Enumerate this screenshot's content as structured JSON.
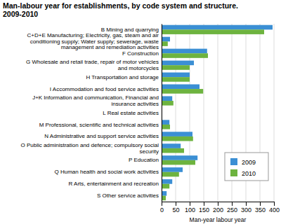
{
  "chart_data": {
    "type": "bar",
    "orientation": "horizontal",
    "title": "Man-labour year for establishments, by code system and structure. 2009-2010",
    "x_label": "Man-year labour year",
    "categories": [
      "B Mining and quarrying",
      "C+D+E Manufacturing; Electricity, gas, steam and air conditioning supply; Water supply; sewerage, waste management and remediation activities",
      "F Construction",
      "G Wholesale and retail trade, repair of motor vehicles and motorcycles",
      "H Transportation and storage",
      "I Accommodation and food service activities",
      "J+K Information and communication, Financial and insurance activities",
      "L Real estate activities",
      "M Professional, scientific and technical activities",
      "N Administrative and support service activities",
      "O Public administration and defence; compulsory social security",
      "P Education",
      "Q Human health and social work activities",
      "R Arts, entertainment and recreation",
      "S Other service activities"
    ],
    "series": [
      {
        "name": "2009",
        "color": "#3b8fd4",
        "values": [
          395,
          30,
          162,
          115,
          100,
          135,
          38,
          2,
          28,
          110,
          68,
          128,
          75,
          38,
          18
        ]
      },
      {
        "name": "2010",
        "color": "#6db33f",
        "values": [
          365,
          22,
          165,
          100,
          100,
          148,
          42,
          2,
          30,
          112,
          80,
          120,
          62,
          28,
          15
        ]
      }
    ],
    "xlim": [
      0,
      400
    ],
    "xticks": [
      0,
      50,
      100,
      150,
      200,
      250,
      300,
      350,
      400
    ],
    "grid": true,
    "legend": "lower right"
  }
}
